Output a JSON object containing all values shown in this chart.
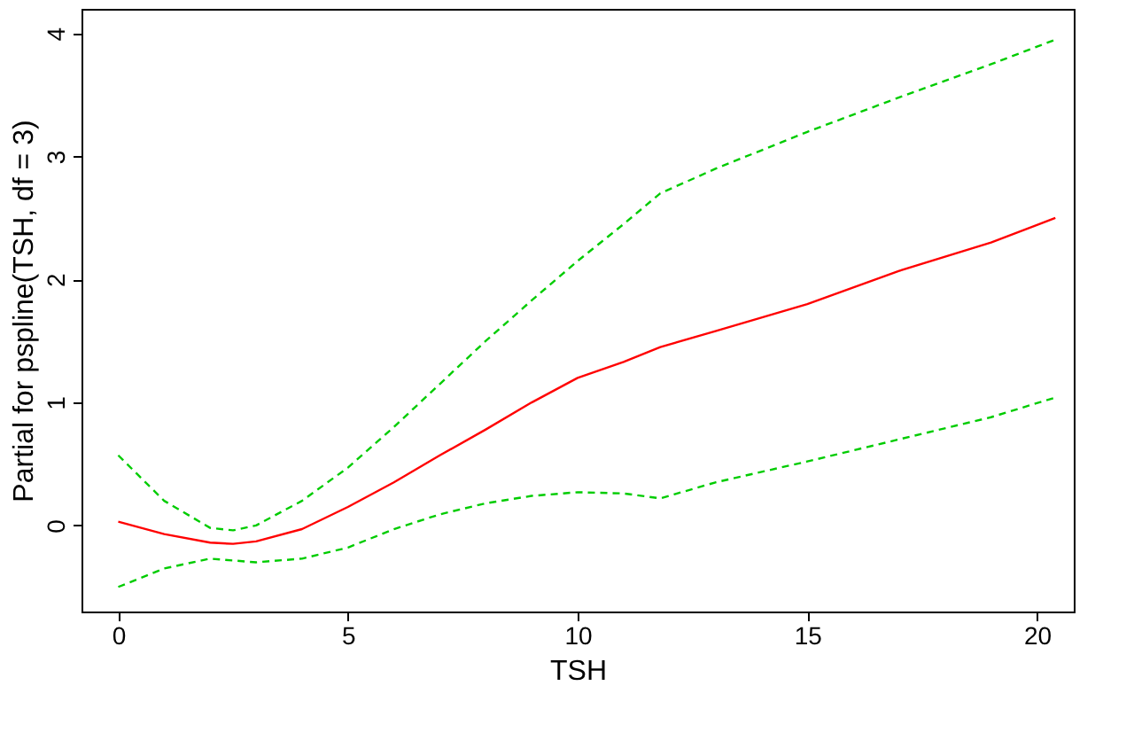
{
  "chart_data": {
    "type": "line",
    "xlabel": "TSH",
    "ylabel": "Partial for pspline(TSH, df = 3)",
    "xlim": [
      -0.8,
      20.8
    ],
    "ylim": [
      -0.7,
      4.2
    ],
    "xticks": [
      0,
      5,
      10,
      15,
      20
    ],
    "yticks": [
      0,
      1,
      2,
      3,
      4
    ],
    "grid": false,
    "marker": "none",
    "series": [
      {
        "color": "#ff0000",
        "line_style": "solid",
        "x": [
          0,
          1,
          2,
          2.5,
          3,
          4,
          5,
          6,
          7,
          8,
          9,
          10,
          11,
          11.8,
          13,
          15,
          17,
          19,
          20.4
        ],
        "values": [
          0.03,
          -0.07,
          -0.14,
          -0.15,
          -0.13,
          -0.03,
          0.15,
          0.35,
          0.57,
          0.78,
          1.0,
          1.2,
          1.33,
          1.45,
          1.58,
          1.8,
          2.07,
          2.3,
          2.5
        ]
      },
      {
        "color": "#00cc00",
        "line_style": "dashed",
        "x": [
          0,
          1,
          2,
          2.5,
          3,
          4,
          5,
          6,
          7,
          8,
          9,
          10,
          11,
          11.8,
          13,
          15,
          17,
          19,
          20.4
        ],
        "values": [
          0.57,
          0.2,
          -0.02,
          -0.04,
          0.0,
          0.2,
          0.47,
          0.8,
          1.15,
          1.5,
          1.83,
          2.15,
          2.45,
          2.7,
          2.9,
          3.2,
          3.48,
          3.75,
          3.95
        ]
      },
      {
        "color": "#00cc00",
        "line_style": "dashed",
        "x": [
          0,
          1,
          2,
          3,
          4,
          5,
          6,
          7,
          8,
          9,
          10,
          11,
          11.8,
          13,
          15,
          17,
          19,
          20.4
        ],
        "values": [
          -0.5,
          -0.35,
          -0.27,
          -0.3,
          -0.27,
          -0.18,
          -0.03,
          0.09,
          0.18,
          0.24,
          0.27,
          0.26,
          0.22,
          0.35,
          0.52,
          0.7,
          0.88,
          1.04
        ]
      }
    ]
  }
}
